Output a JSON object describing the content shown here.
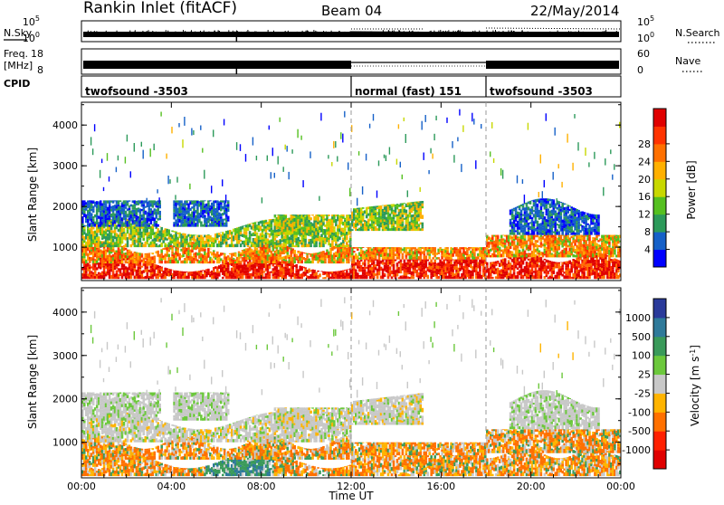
{
  "header": {
    "radar": "Rankin Inlet (fitACF)",
    "beam": "Beam 04",
    "date": "22/May/2014"
  },
  "strips": {
    "nsky_label": "N.Sky",
    "nsky_ticks": [
      "10^5",
      "10^0"
    ],
    "nsearch_label": "N.Search",
    "freq_label": "Freq.",
    "freq_unit": "[MHz]",
    "freq_ticks": [
      "18",
      "8"
    ],
    "nave_label": "Nave",
    "nave_ticks": [
      "60",
      "0"
    ],
    "nsearch_ticks": [
      "10^5",
      "10^0"
    ],
    "cpid_label": "CPID",
    "cpid_segments": [
      {
        "name": "twofsound -3503",
        "start_h": 0,
        "end_h": 12
      },
      {
        "name": "normal (fast) 151",
        "start_h": 12,
        "end_h": 18
      },
      {
        "name": "twofsound -3503",
        "start_h": 18,
        "end_h": 24
      }
    ]
  },
  "chart_data": [
    {
      "type": "heatmap",
      "ylabel": "Slant Range [km]",
      "ylim": [
        180,
        4560
      ],
      "xlim_hours": [
        0,
        24
      ],
      "yticks": [
        "1000",
        "2000",
        "3000",
        "4000"
      ],
      "colorbar_label": "Power [dB]",
      "colorbar_ticks": [
        "4",
        "8",
        "12",
        "16",
        "20",
        "24",
        "28"
      ],
      "colorbar_colors": [
        "#0000ff",
        "#1560c8",
        "#2c9a5a",
        "#55c020",
        "#c8d800",
        "#ffb000",
        "#ff7000",
        "#ff3300",
        "#e00000"
      ],
      "colorbar_range": [
        0,
        30
      ]
    },
    {
      "type": "heatmap",
      "ylabel": "Velocity [m s^-1]",
      "ylim": [
        180,
        4560
      ],
      "xlim_hours": [
        0,
        24
      ],
      "yticks": [
        "1000",
        "2000",
        "3000",
        "4000"
      ],
      "ylabel_axis": "Slant Range [km]",
      "colorbar_label": "Velocity [m s",
      "colorbar_label_sup": "-1",
      "colorbar_label_end": "]",
      "colorbar_ticks": [
        "1000",
        "500",
        "100",
        "25",
        "-25",
        "-100",
        "-500",
        "-1000"
      ],
      "colorbar_colors": [
        "#2a3a9a",
        "#2f7a9a",
        "#3a9a5a",
        "#6cc83c",
        "#c8c8c8",
        "#ffb400",
        "#ff7000",
        "#ff2000",
        "#e00000"
      ],
      "xlabel": "Time UT",
      "xticks": [
        "00:00",
        "04:00",
        "08:00",
        "12:00",
        "16:00",
        "20:00",
        "00:00"
      ]
    }
  ]
}
